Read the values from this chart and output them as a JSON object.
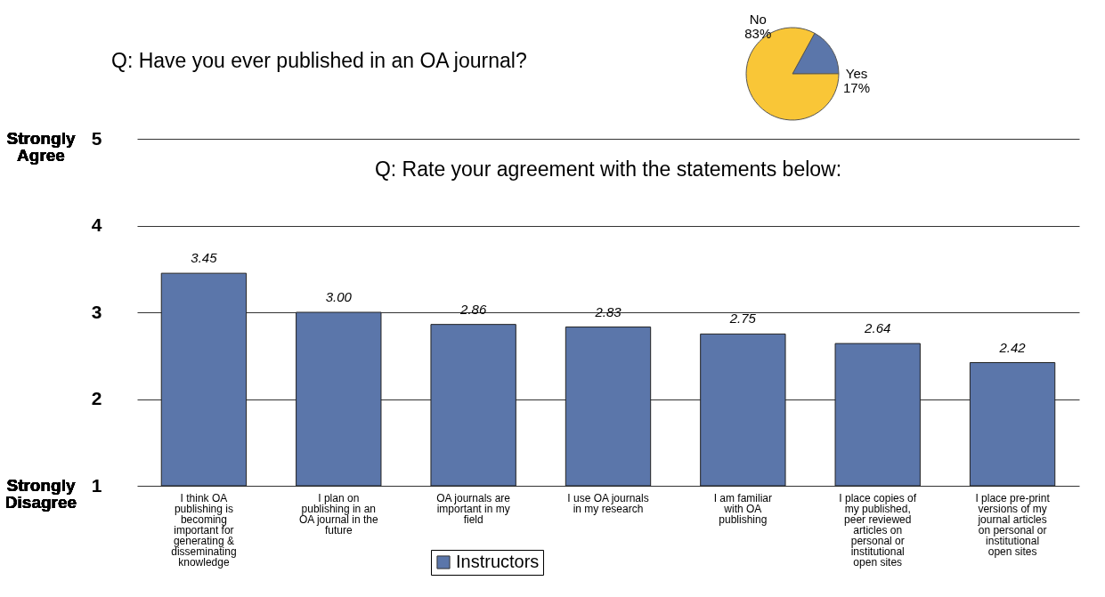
{
  "chart_data": [
    {
      "type": "pie",
      "title": "Q: Have you ever published in an OA journal?",
      "categories": [
        "Yes",
        "No"
      ],
      "values": [
        17,
        83
      ],
      "colors": [
        "#5b76aa",
        "#f9c637"
      ],
      "value_labels": [
        "17%",
        "83%"
      ]
    },
    {
      "type": "bar",
      "title": "Q: Rate your agreement with the statements below:",
      "categories": [
        "I think OA publishing is becoming important for generating & disseminating knowledge",
        "I plan on publishing in an OA journal in the future",
        "OA journals are important in my field",
        "I use OA journals in my research",
        "I am familiar with OA publishing",
        "I place copies of my published, peer reviewed articles on personal or institutional open sites",
        "I place pre-print versions of my journal articles on personal or institutional open sites"
      ],
      "series": [
        {
          "name": "Instructors",
          "color": "#5b76aa",
          "values": [
            3.45,
            3.0,
            2.86,
            2.83,
            2.75,
            2.64,
            2.42
          ],
          "value_labels": [
            "3.45",
            "3.00",
            "2.86",
            "2.83",
            "2.75",
            "2.64",
            "2.42"
          ]
        }
      ],
      "ylim": [
        1,
        5
      ],
      "yticks": [
        1,
        2,
        3,
        4,
        5
      ],
      "grid": "y",
      "legend": "bottom",
      "annotations": [
        "Strongly Agree",
        "Strongly Disagree"
      ]
    }
  ]
}
